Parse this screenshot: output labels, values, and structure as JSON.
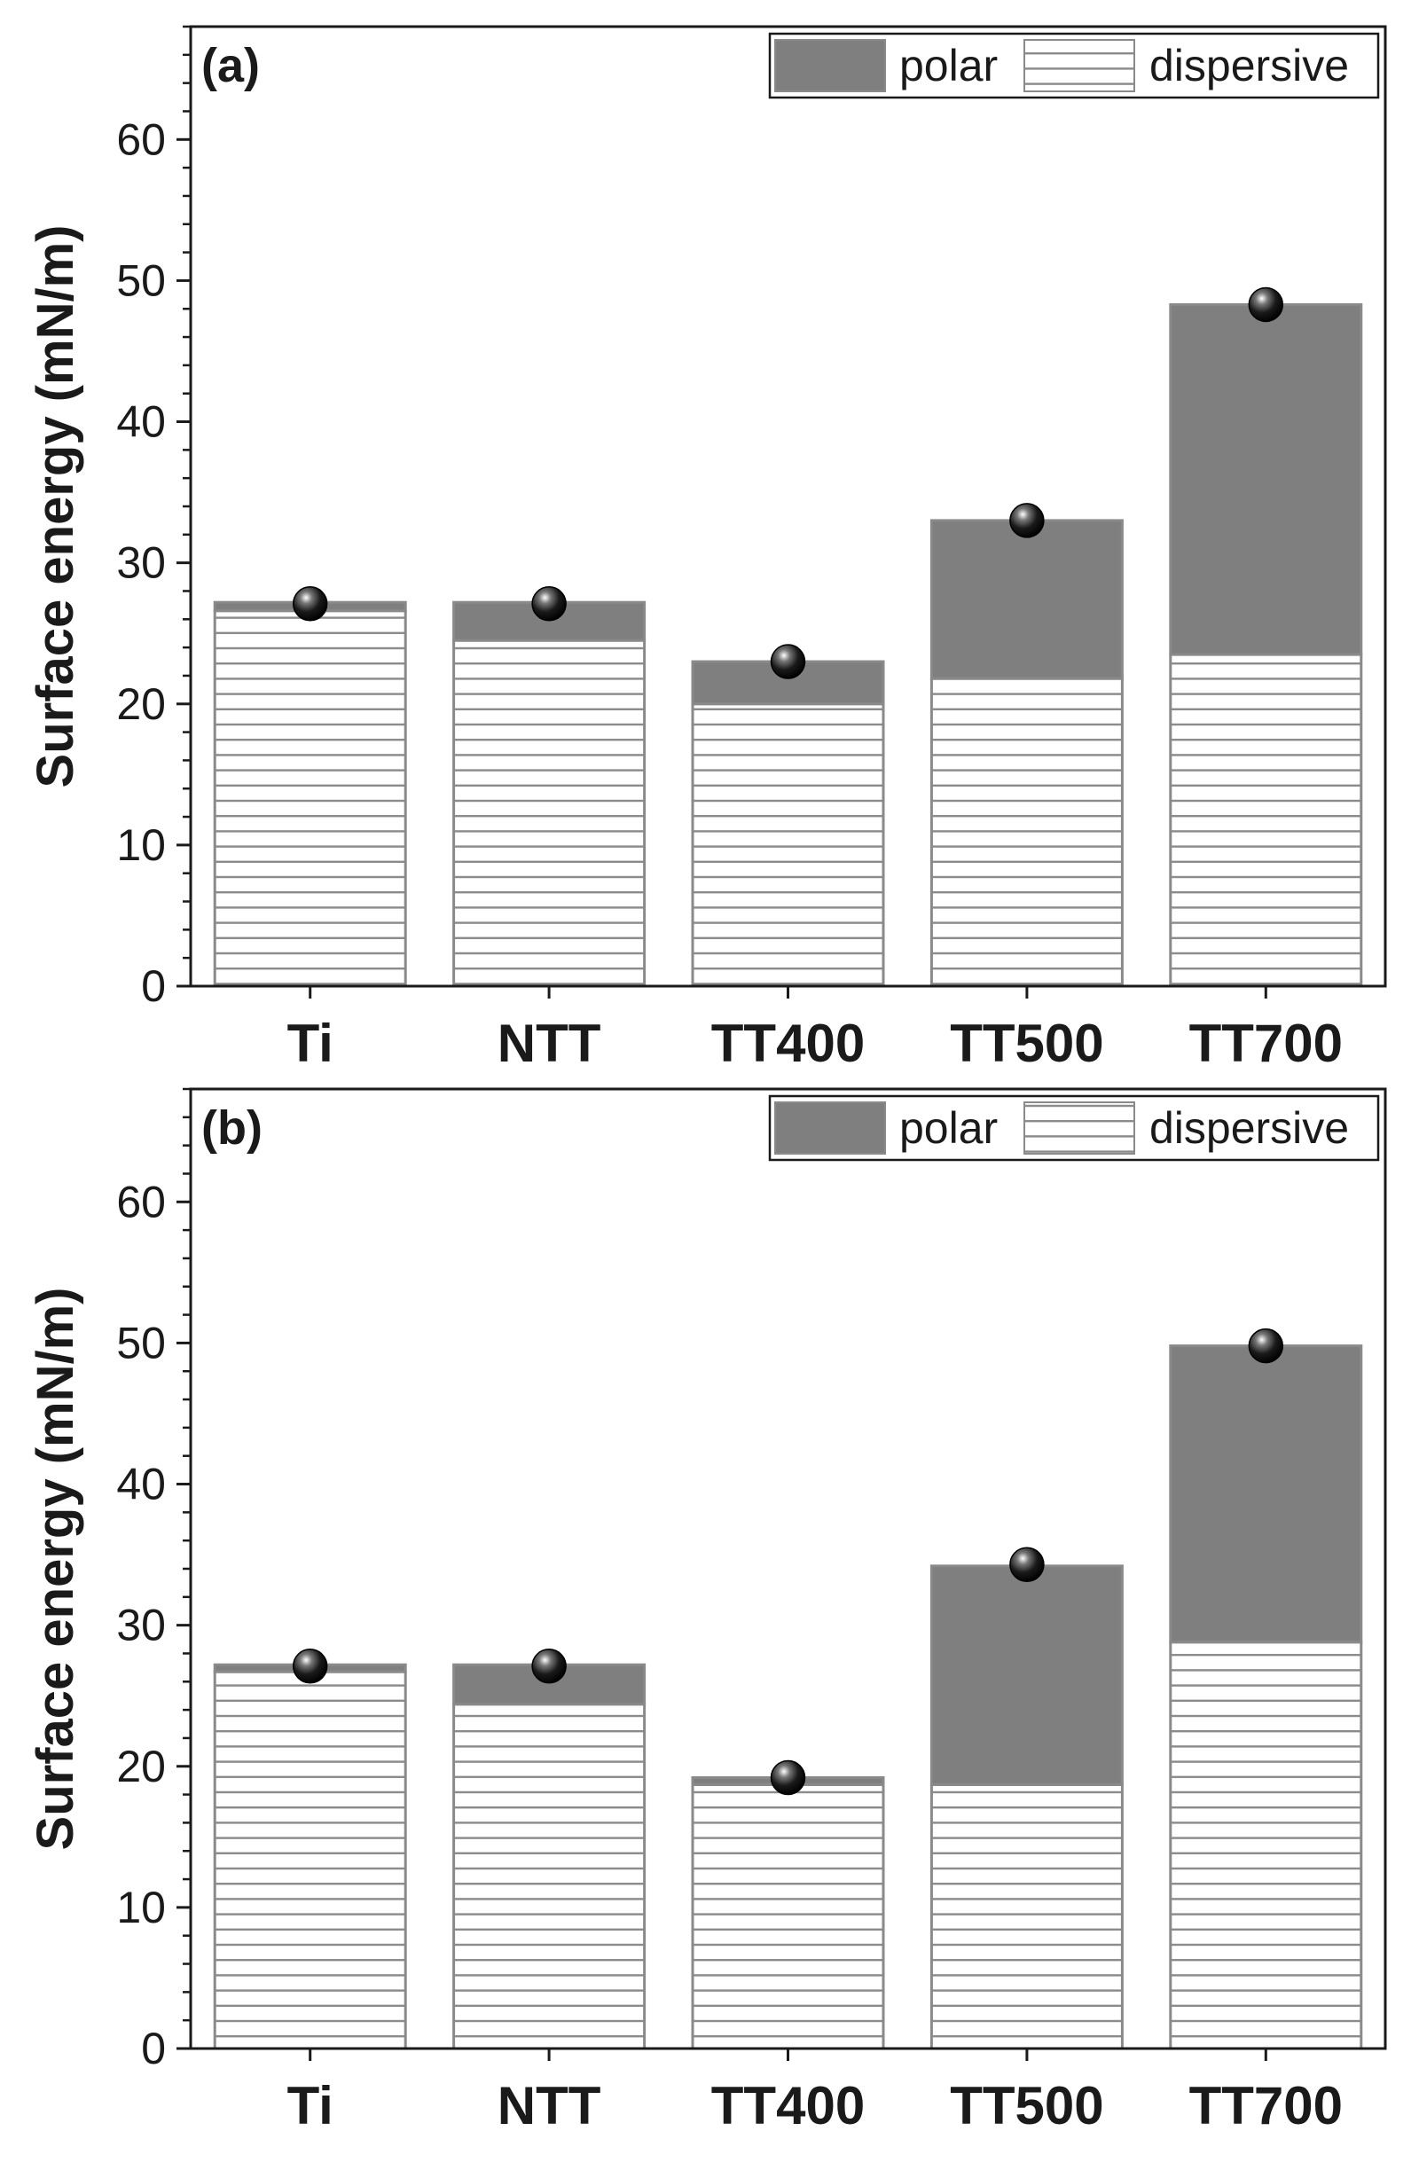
{
  "chart_data": [
    {
      "type": "bar",
      "stacked": true,
      "panel_label": "(a)",
      "categories": [
        "Ti",
        "NTT",
        "TT400",
        "TT500",
        "TT700"
      ],
      "series": [
        {
          "name": "dispersive",
          "values": [
            26.6,
            24.5,
            20.0,
            21.8,
            23.5
          ]
        },
        {
          "name": "polar",
          "values": [
            0.6,
            2.7,
            3.0,
            11.2,
            24.8
          ]
        }
      ],
      "total_markers": [
        27.1,
        27.1,
        23.0,
        33.0,
        48.3
      ],
      "ylabel": "Surface energy (mN/m)",
      "xlabel": "",
      "ylim": [
        0,
        68
      ],
      "yticks": [
        0,
        10,
        20,
        30,
        40,
        50,
        60
      ],
      "legend": [
        "polar",
        "dispersive"
      ],
      "legend_position": "top-right"
    },
    {
      "type": "bar",
      "stacked": true,
      "panel_label": "(b)",
      "categories": [
        "Ti",
        "NTT",
        "TT400",
        "TT500",
        "TT700"
      ],
      "series": [
        {
          "name": "dispersive",
          "values": [
            26.7,
            24.4,
            18.7,
            18.7,
            28.8
          ]
        },
        {
          "name": "polar",
          "values": [
            0.5,
            2.8,
            0.5,
            15.5,
            21.0
          ]
        }
      ],
      "total_markers": [
        27.1,
        27.1,
        19.2,
        34.3,
        49.8
      ],
      "ylabel": "Surface energy (mN/m)",
      "xlabel": "",
      "ylim": [
        0,
        68
      ],
      "yticks": [
        0,
        10,
        20,
        30,
        40,
        50,
        60
      ],
      "legend": [
        "polar",
        "dispersive"
      ],
      "legend_position": "top-right"
    }
  ],
  "colors": {
    "polar": "#7f7f7f",
    "dispersive_fill": "#ffffff",
    "dispersive_hatch": "#8a8a8a",
    "bar_edge": "#8a8a8a",
    "axis": "#1a1a1a",
    "marker": "#000000"
  }
}
